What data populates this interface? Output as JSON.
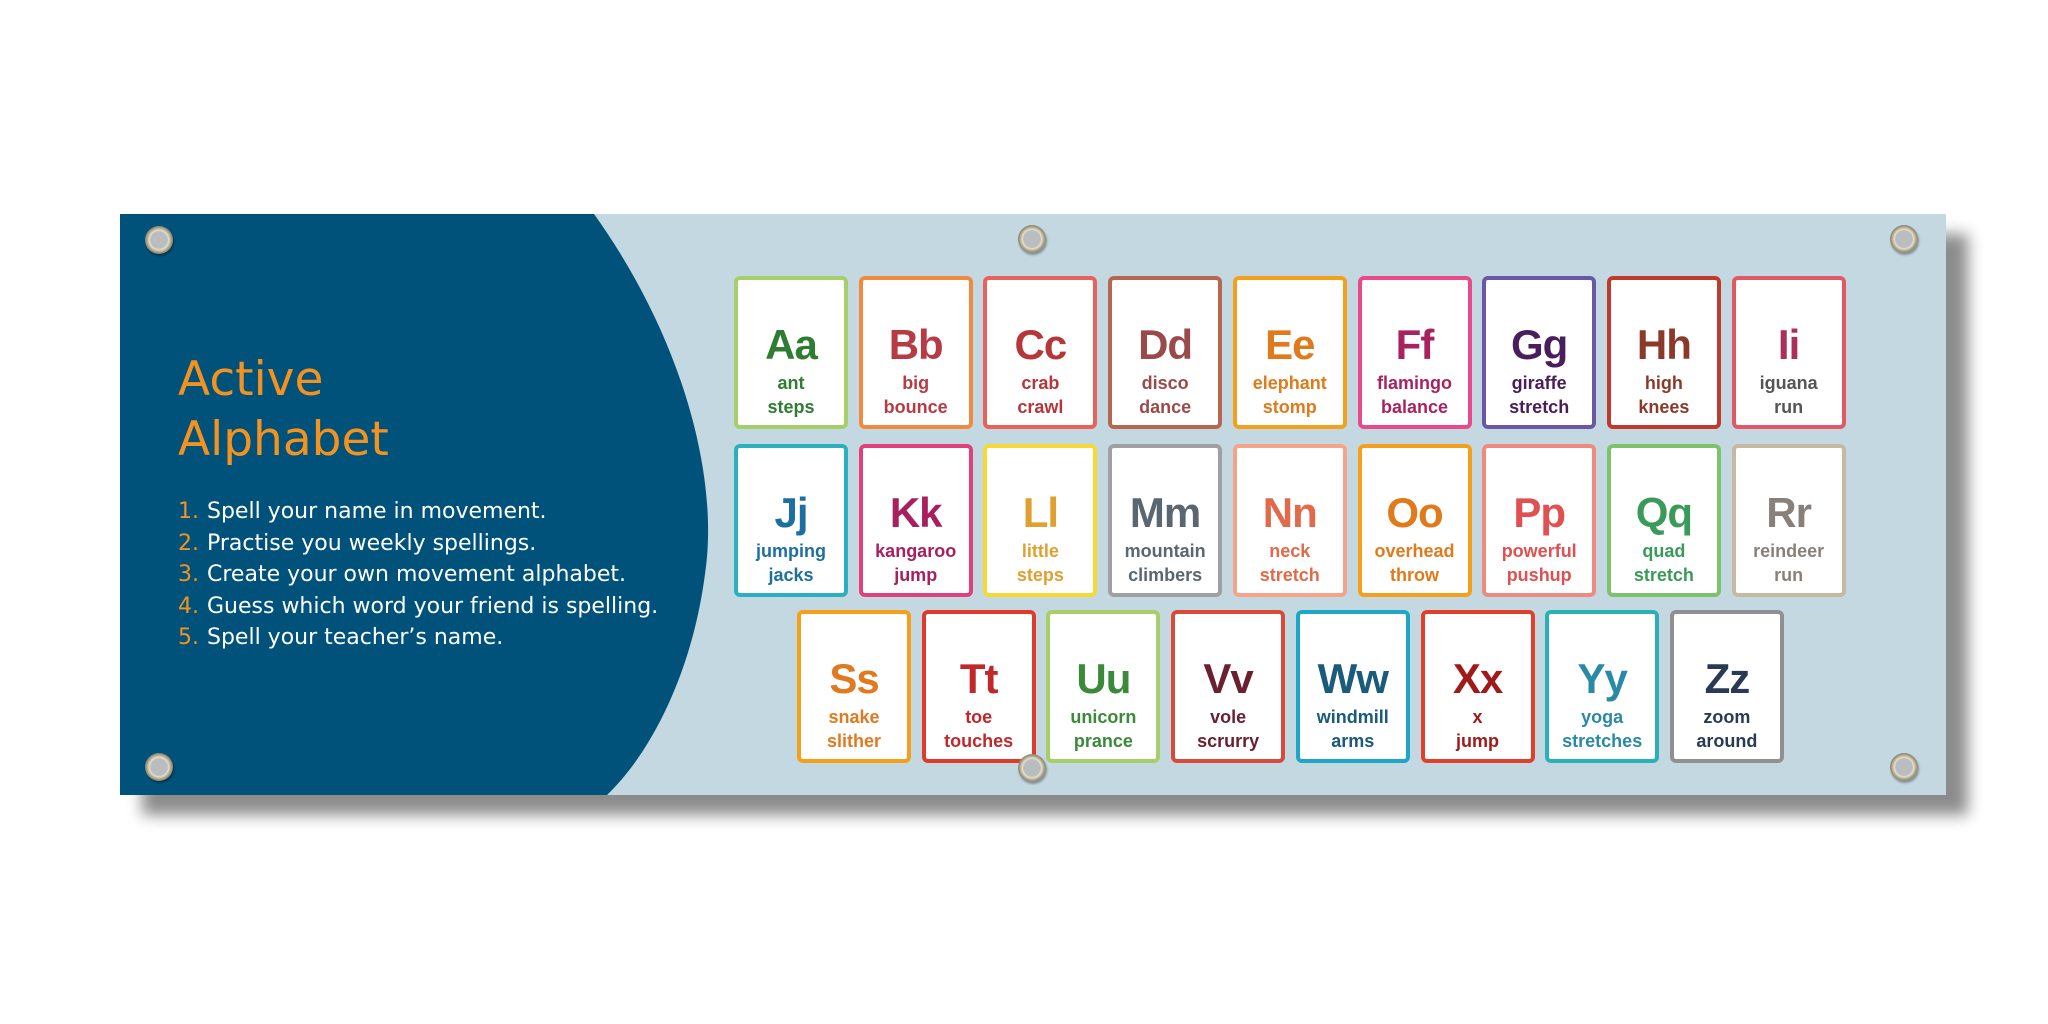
{
  "title": [
    "Active",
    "Alphabet"
  ],
  "steps": [
    {
      "num": "1.",
      "text": "Spell your name in movement."
    },
    {
      "num": "2.",
      "text": "Practise you weekly spellings."
    },
    {
      "num": "3.",
      "text": "Create your own movement alphabet."
    },
    {
      "num": "4.",
      "text": "Guess which word your friend is spelling."
    },
    {
      "num": "5.",
      "text": "Spell your teacher’s name."
    }
  ],
  "colors": {
    "panel": "#00527a",
    "background": "#c4d8e1",
    "accent": "#f3921f"
  },
  "cards": [
    {
      "letter": "Aa",
      "words": [
        "ant",
        "steps"
      ],
      "border": "#a6cf6a",
      "color": "#2e7d32"
    },
    {
      "letter": "Bb",
      "words": [
        "big",
        "bounce"
      ],
      "border": "#f08a3c",
      "color": "#b83a44"
    },
    {
      "letter": "Cc",
      "words": [
        "crab",
        "crawl"
      ],
      "border": "#e8615a",
      "color": "#b5373a"
    },
    {
      "letter": "Dd",
      "words": [
        "disco",
        "dance"
      ],
      "border": "#b5684f",
      "color": "#9a4a4a"
    },
    {
      "letter": "Ee",
      "words": [
        "elephant",
        "stomp"
      ],
      "border": "#f5a01a",
      "color": "#e07a1a"
    },
    {
      "letter": "Ff",
      "words": [
        "flamingo",
        "balance"
      ],
      "border": "#e84a8a",
      "color": "#a8235e"
    },
    {
      "letter": "Gg",
      "words": [
        "giraffe",
        "stretch"
      ],
      "border": "#6a57a8",
      "color": "#4a1e5a"
    },
    {
      "letter": "Hh",
      "words": [
        "high",
        "knees"
      ],
      "border": "#c0392b",
      "color": "#8b3a2a"
    },
    {
      "letter": "Ii",
      "words": [
        "iguana",
        "run"
      ],
      "border": "#e25866",
      "color": "#a8305a",
      "wordColor": "#555555"
    },
    {
      "letter": "Jj",
      "words": [
        "jumping",
        "jacks"
      ],
      "border": "#2ab0bf",
      "color": "#1d6fa0"
    },
    {
      "letter": "Kk",
      "words": [
        "kangaroo",
        "jump"
      ],
      "border": "#e2407a",
      "color": "#a81e5e"
    },
    {
      "letter": "Ll",
      "words": [
        "little",
        "steps"
      ],
      "border": "#f7d936",
      "color": "#e0a030"
    },
    {
      "letter": "Mm",
      "words": [
        "mountain",
        "climbers"
      ],
      "border": "#a0a0a0",
      "color": "#5a6670"
    },
    {
      "letter": "Nn",
      "words": [
        "neck",
        "stretch"
      ],
      "border": "#f5a48a",
      "color": "#e06a4a"
    },
    {
      "letter": "Oo",
      "words": [
        "overhead",
        "throw"
      ],
      "border": "#f5a01a",
      "color": "#e07a1a"
    },
    {
      "letter": "Pp",
      "words": [
        "powerful",
        "pushup"
      ],
      "border": "#f08a80",
      "color": "#e05050"
    },
    {
      "letter": "Qq",
      "words": [
        "quad",
        "stretch"
      ],
      "border": "#7dc36b",
      "color": "#3a9a5a"
    },
    {
      "letter": "Rr",
      "words": [
        "reindeer",
        "run"
      ],
      "border": "#c8b8a0",
      "color": "#8a807a"
    },
    {
      "letter": "Ss",
      "words": [
        "snake",
        "slither"
      ],
      "border": "#f5a01a",
      "color": "#e07a20"
    },
    {
      "letter": "Tt",
      "words": [
        "toe",
        "touches"
      ],
      "border": "#e03a2a",
      "color": "#c0282a"
    },
    {
      "letter": "Uu",
      "words": [
        "unicorn",
        "prance"
      ],
      "border": "#a6cf6a",
      "color": "#3a8a3a"
    },
    {
      "letter": "Vv",
      "words": [
        "vole",
        "scrurry"
      ],
      "border": "#d84a3a",
      "color": "#6a2030"
    },
    {
      "letter": "Ww",
      "words": [
        "windmill",
        "arms"
      ],
      "border": "#1fa5c5",
      "color": "#1a5a7a"
    },
    {
      "letter": "Xx",
      "words": [
        "x",
        "jump"
      ],
      "border": "#e0402a",
      "color": "#a01a1a"
    },
    {
      "letter": "Yy",
      "words": [
        "yoga",
        "stretches"
      ],
      "border": "#2ab0b5",
      "color": "#2a8aa5"
    },
    {
      "letter": "Zz",
      "words": [
        "zoom",
        "around"
      ],
      "border": "#909090",
      "color": "#2a3a55"
    }
  ]
}
